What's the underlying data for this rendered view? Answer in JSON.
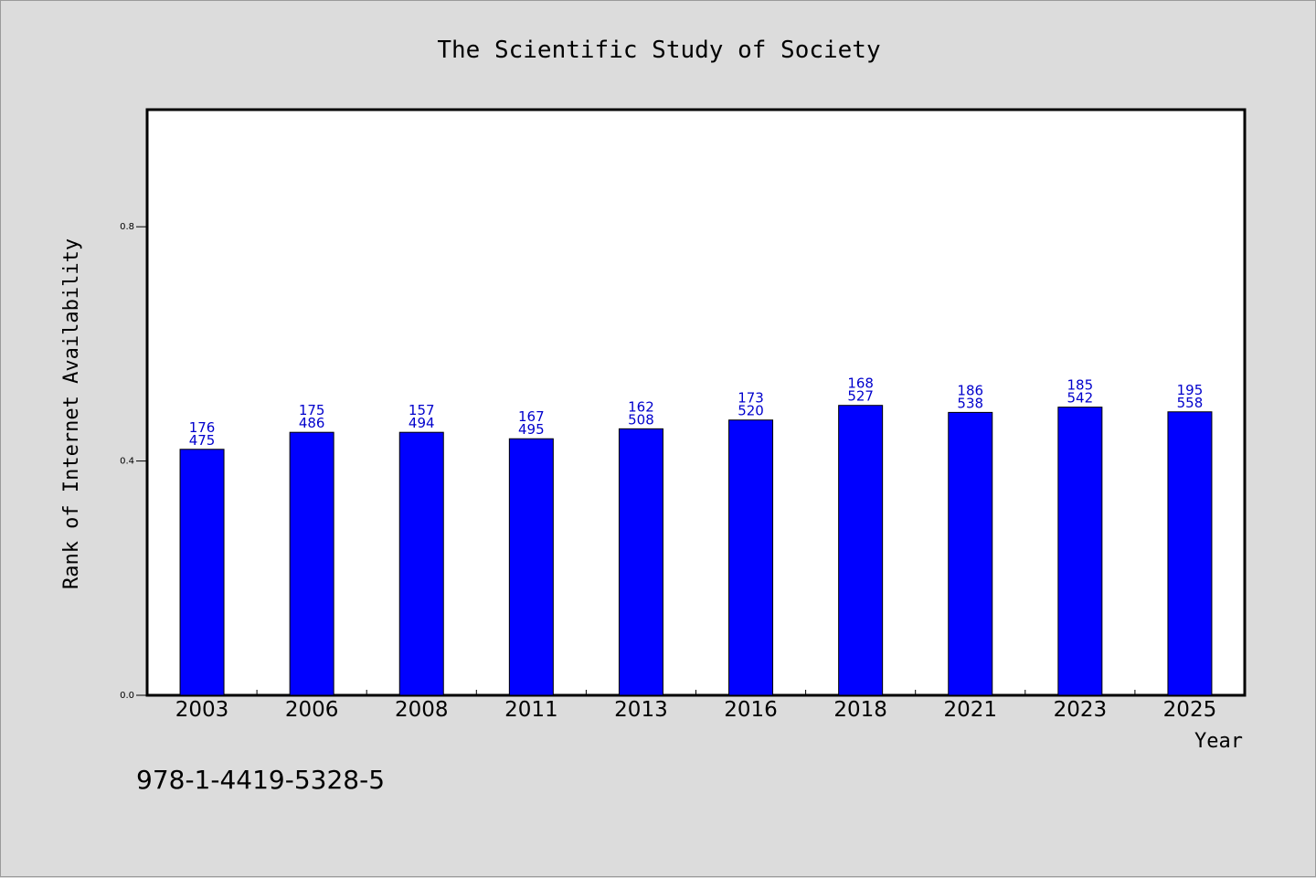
{
  "chart_data": {
    "type": "bar",
    "title": "The Scientific Study of Society",
    "xlabel": "Year",
    "ylabel": "Rank of Internet Availability",
    "categories": [
      "2003",
      "2006",
      "2008",
      "2011",
      "2013",
      "2016",
      "2018",
      "2021",
      "2023",
      "2025"
    ],
    "values": [
      0.42,
      0.449,
      0.449,
      0.438,
      0.455,
      0.47,
      0.495,
      0.483,
      0.492,
      0.484
    ],
    "labels_top": [
      "176",
      "175",
      "157",
      "167",
      "162",
      "173",
      "168",
      "186",
      "185",
      "195"
    ],
    "labels_bottom": [
      "475",
      "486",
      "494",
      "495",
      "508",
      "520",
      "527",
      "538",
      "542",
      "558"
    ],
    "ylim": [
      0,
      1.0
    ],
    "yticks": [
      0.0,
      0.4,
      0.8
    ],
    "ytick_labels": [
      "0.0",
      "0.4",
      "0.8"
    ],
    "bar_color": "#0000ff",
    "label_color": "#0000cc",
    "grid": false,
    "legend": "none"
  },
  "footer": {
    "isbn": "978-1-4419-5328-5"
  }
}
